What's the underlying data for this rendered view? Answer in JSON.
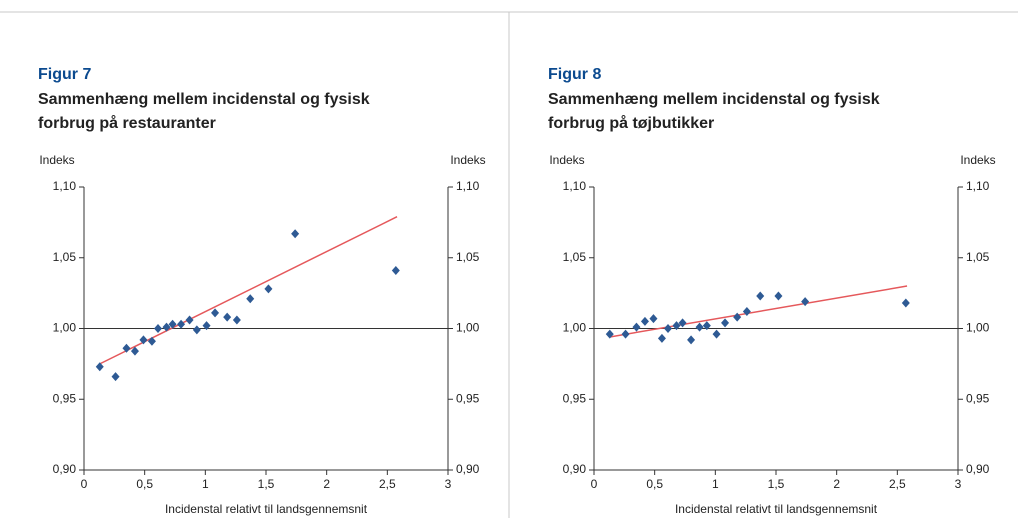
{
  "chart_data": [
    {
      "type": "scatter",
      "figure_label": "Figur 7",
      "title": [
        "Sammenhæng mellem incidenstal og fysisk",
        "forbrug på restauranter"
      ],
      "ylabel": "Indeks",
      "y2label": "Indeks",
      "xlabel": "Incidenstal  relativt til landsgennemsnit",
      "x": [
        0.13,
        0.26,
        0.35,
        0.42,
        0.49,
        0.56,
        0.61,
        0.68,
        0.73,
        0.8,
        0.87,
        0.93,
        1.01,
        1.08,
        1.18,
        1.26,
        1.37,
        1.52,
        1.74,
        2.57
      ],
      "values": [
        0.973,
        0.966,
        0.986,
        0.984,
        0.992,
        0.991,
        1.0,
        1.001,
        1.003,
        1.003,
        1.006,
        0.999,
        1.002,
        1.011,
        1.008,
        1.006,
        1.021,
        1.028,
        1.067,
        1.041
      ],
      "color": "#2e5a94",
      "trendline": {
        "x": [
          0.13,
          2.58
        ],
        "values": [
          0.975,
          1.079
        ],
        "color": "#e5585b"
      },
      "reference_line": 1.0,
      "xlim": [
        0,
        3
      ],
      "xticks": [
        0,
        {
          "value": 0.5,
          "label": "0,5"
        },
        1,
        {
          "value": 1.5,
          "label": "1,5"
        },
        2,
        {
          "value": 2.5,
          "label": "2,5"
        },
        3
      ],
      "ylim": [
        0.9,
        1.1
      ],
      "yticks": [
        {
          "value": 0.9,
          "label": "0,90"
        },
        {
          "value": 0.95,
          "label": "0,95"
        },
        {
          "value": 1.0,
          "label": "1,00"
        },
        {
          "value": 1.05,
          "label": "1,05"
        },
        {
          "value": 1.1,
          "label": "1,10"
        }
      ],
      "y2lim": [
        0.9,
        1.1
      ],
      "y2ticks": [
        {
          "value": 0.9,
          "label": "0,90"
        },
        {
          "value": 0.95,
          "label": "0,95"
        },
        {
          "value": 1.0,
          "label": "1,00"
        },
        {
          "value": 1.05,
          "label": "1,05"
        },
        {
          "value": 1.1,
          "label": "1,10"
        }
      ]
    },
    {
      "type": "scatter",
      "figure_label": "Figur 8",
      "title": [
        "Sammenhæng mellem incidenstal og fysisk",
        "forbrug på tøjbutikker"
      ],
      "ylabel": "Indeks",
      "y2label": "Indeks",
      "xlabel": "Incidenstal  relativt til landsgennemsnit",
      "x": [
        0.13,
        0.26,
        0.35,
        0.42,
        0.49,
        0.56,
        0.61,
        0.68,
        0.73,
        0.8,
        0.87,
        0.93,
        1.01,
        1.08,
        1.18,
        1.26,
        1.37,
        1.52,
        1.74,
        2.57
      ],
      "values": [
        0.996,
        0.996,
        1.001,
        1.005,
        1.007,
        0.993,
        1.0,
        1.002,
        1.004,
        0.992,
        1.001,
        1.002,
        0.996,
        1.004,
        1.008,
        1.012,
        1.023,
        1.023,
        1.019,
        1.018
      ],
      "color": "#2e5a94",
      "trendline": {
        "x": [
          0.13,
          2.58
        ],
        "values": [
          0.994,
          1.03
        ],
        "color": "#e5585b"
      },
      "reference_line": 1.0,
      "xlim": [
        0,
        3
      ],
      "xticks": [
        0,
        {
          "value": 0.5,
          "label": "0,5"
        },
        1,
        {
          "value": 1.5,
          "label": "1,5"
        },
        2,
        {
          "value": 2.5,
          "label": "2,5"
        },
        3
      ],
      "ylim": [
        0.9,
        1.1
      ],
      "yticks": [
        {
          "value": 0.9,
          "label": "0,90"
        },
        {
          "value": 0.95,
          "label": "0,95"
        },
        {
          "value": 1.0,
          "label": "1,00"
        },
        {
          "value": 1.05,
          "label": "1,05"
        },
        {
          "value": 1.1,
          "label": "1,10"
        }
      ],
      "y2lim": [
        0.9,
        1.1
      ],
      "y2ticks": [
        {
          "value": 0.9,
          "label": "0,90"
        },
        {
          "value": 0.95,
          "label": "0,95"
        },
        {
          "value": 1.0,
          "label": "1,00"
        },
        {
          "value": 1.05,
          "label": "1,05"
        },
        {
          "value": 1.1,
          "label": "1,10"
        }
      ]
    }
  ]
}
